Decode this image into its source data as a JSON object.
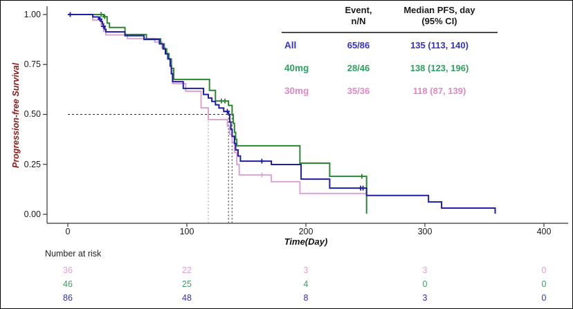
{
  "axes": {
    "y_label": "Progression-free Survival",
    "y_label_color": "#8b1a1a",
    "x_label": "Time(Day)"
  },
  "legend_table": {
    "headers": {
      "event_line1": "Event,",
      "event_line2": "n/N",
      "median_line1": "Median PFS, day",
      "median_line2": "(95% CI)"
    },
    "rows": [
      {
        "label": "All",
        "event_n_n": "65/86",
        "median_pfs_ci": "135 (113, 140)",
        "color": "#3232c0"
      },
      {
        "label": "40mg",
        "event_n_n": "28/46",
        "median_pfs_ci": "138 (123, 196)",
        "color": "#2f9d5f"
      },
      {
        "label": "30mg",
        "event_n_n": "35/36",
        "median_pfs_ci": "118 (87, 139)",
        "color": "#e287c3"
      }
    ]
  },
  "risk_table": {
    "title": "Number at risk",
    "rows": [
      {
        "group": "30mg",
        "color": "#dda0d4",
        "values": [
          "36",
          "22",
          "3",
          "3",
          "0"
        ]
      },
      {
        "group": "40mg",
        "color": "#3d9c63",
        "values": [
          "46",
          "25",
          "4",
          "0",
          "0"
        ]
      },
      {
        "group": "All",
        "color": "#3030b2",
        "values": [
          "86",
          "48",
          "8",
          "3",
          "0"
        ]
      }
    ]
  },
  "chart_data": {
    "type": "line",
    "subtype": "kaplan-meier-step-curves",
    "title": "",
    "xlabel": "Time(Day)",
    "ylabel": "Progression-free Survival",
    "xlim": [
      0,
      400
    ],
    "ylim": [
      0,
      1
    ],
    "grid": "off",
    "legend_position": "top-right-table",
    "x_ticks": [
      0,
      100,
      200,
      300,
      400
    ],
    "x_tick_labels": [
      "0",
      "100",
      "200",
      "300",
      "400"
    ],
    "y_ticks": [
      1.0,
      0.75,
      0.5,
      0.25,
      0.0
    ],
    "y_tick_labels": [
      "1.00",
      "0.75",
      "0.50",
      "0.25",
      "0.00"
    ],
    "series": [
      {
        "name": "30mg",
        "color": "#dca3d7",
        "median_day": 118,
        "steps": [
          [
            0,
            1.0
          ],
          [
            21,
            0.972
          ],
          [
            28,
            0.944
          ],
          [
            30,
            0.917
          ],
          [
            32,
            0.898
          ],
          [
            50,
            0.88
          ],
          [
            73,
            0.862
          ],
          [
            79,
            0.833
          ],
          [
            82,
            0.805
          ],
          [
            85,
            0.776
          ],
          [
            87,
            0.72
          ],
          [
            88,
            0.654
          ],
          [
            99,
            0.616
          ],
          [
            112,
            0.533
          ],
          [
            118,
            0.474
          ],
          [
            134,
            0.44
          ],
          [
            136,
            0.4
          ],
          [
            138,
            0.36
          ],
          [
            140,
            0.31
          ],
          [
            142,
            0.249
          ],
          [
            144,
            0.197
          ],
          [
            171,
            0.163
          ],
          [
            195,
            0.104
          ]
        ],
        "end_day": 251,
        "censors": [
          [
            163,
            0.197
          ]
        ]
      },
      {
        "name": "40mg",
        "color": "#2c8435",
        "median_day": 138,
        "steps": [
          [
            0,
            1.0
          ],
          [
            30,
            0.989
          ],
          [
            33,
            0.957
          ],
          [
            35,
            0.935
          ],
          [
            48,
            0.9
          ],
          [
            66,
            0.878
          ],
          [
            78,
            0.853
          ],
          [
            81,
            0.828
          ],
          [
            83,
            0.803
          ],
          [
            85,
            0.778
          ],
          [
            87,
            0.73
          ],
          [
            89,
            0.675
          ],
          [
            119,
            0.62
          ],
          [
            124,
            0.567
          ],
          [
            135,
            0.545
          ],
          [
            138,
            0.5
          ],
          [
            139,
            0.455
          ],
          [
            140,
            0.41
          ],
          [
            141,
            0.375
          ],
          [
            142,
            0.343
          ],
          [
            195,
            0.256
          ],
          [
            220,
            0.19
          ],
          [
            251,
            0.003
          ]
        ],
        "end_day": 251,
        "censors": [
          [
            28,
            1.0
          ],
          [
            31,
            0.989
          ],
          [
            129,
            0.567
          ],
          [
            132,
            0.567
          ],
          [
            247,
            0.19
          ]
        ]
      },
      {
        "name": "All",
        "color": "#1d1da5",
        "median_day": 135,
        "steps": [
          [
            0,
            1.0
          ],
          [
            21,
            0.988
          ],
          [
            26,
            0.977
          ],
          [
            28,
            0.965
          ],
          [
            29,
            0.953
          ],
          [
            30,
            0.941
          ],
          [
            31,
            0.926
          ],
          [
            32,
            0.913
          ],
          [
            48,
            0.894
          ],
          [
            64,
            0.875
          ],
          [
            77,
            0.853
          ],
          [
            80,
            0.828
          ],
          [
            82,
            0.803
          ],
          [
            84,
            0.778
          ],
          [
            86,
            0.742
          ],
          [
            87,
            0.703
          ],
          [
            88,
            0.664
          ],
          [
            97,
            0.63
          ],
          [
            114,
            0.6
          ],
          [
            118,
            0.582
          ],
          [
            121,
            0.565
          ],
          [
            124,
            0.548
          ],
          [
            127,
            0.532
          ],
          [
            131,
            0.515
          ],
          [
            135,
            0.5
          ],
          [
            136,
            0.462
          ],
          [
            137,
            0.425
          ],
          [
            138,
            0.39
          ],
          [
            140,
            0.355
          ],
          [
            141,
            0.322
          ],
          [
            143,
            0.292
          ],
          [
            145,
            0.266
          ],
          [
            171,
            0.249
          ],
          [
            196,
            0.176
          ],
          [
            220,
            0.131
          ],
          [
            251,
            0.094
          ],
          [
            303,
            0.062
          ],
          [
            314,
            0.031
          ],
          [
            359,
            0.003
          ]
        ],
        "end_day": 359,
        "censors": [
          [
            2,
            1.0
          ],
          [
            27,
            0.977
          ],
          [
            30,
            0.941
          ],
          [
            134,
            0.515
          ],
          [
            163,
            0.266
          ],
          [
            246,
            0.131
          ],
          [
            248,
            0.131
          ]
        ]
      }
    ],
    "reference_lines": {
      "median_horizontal": {
        "y": 0.5,
        "x_from": 0,
        "x_to": 138,
        "color": "#2a2a2a"
      },
      "median_verticals": [
        {
          "x": 118,
          "color": "#b2a2b2"
        },
        {
          "x": 135,
          "color": "#3a3a3a"
        },
        {
          "x": 138,
          "color": "#3a3a3a"
        }
      ]
    }
  }
}
